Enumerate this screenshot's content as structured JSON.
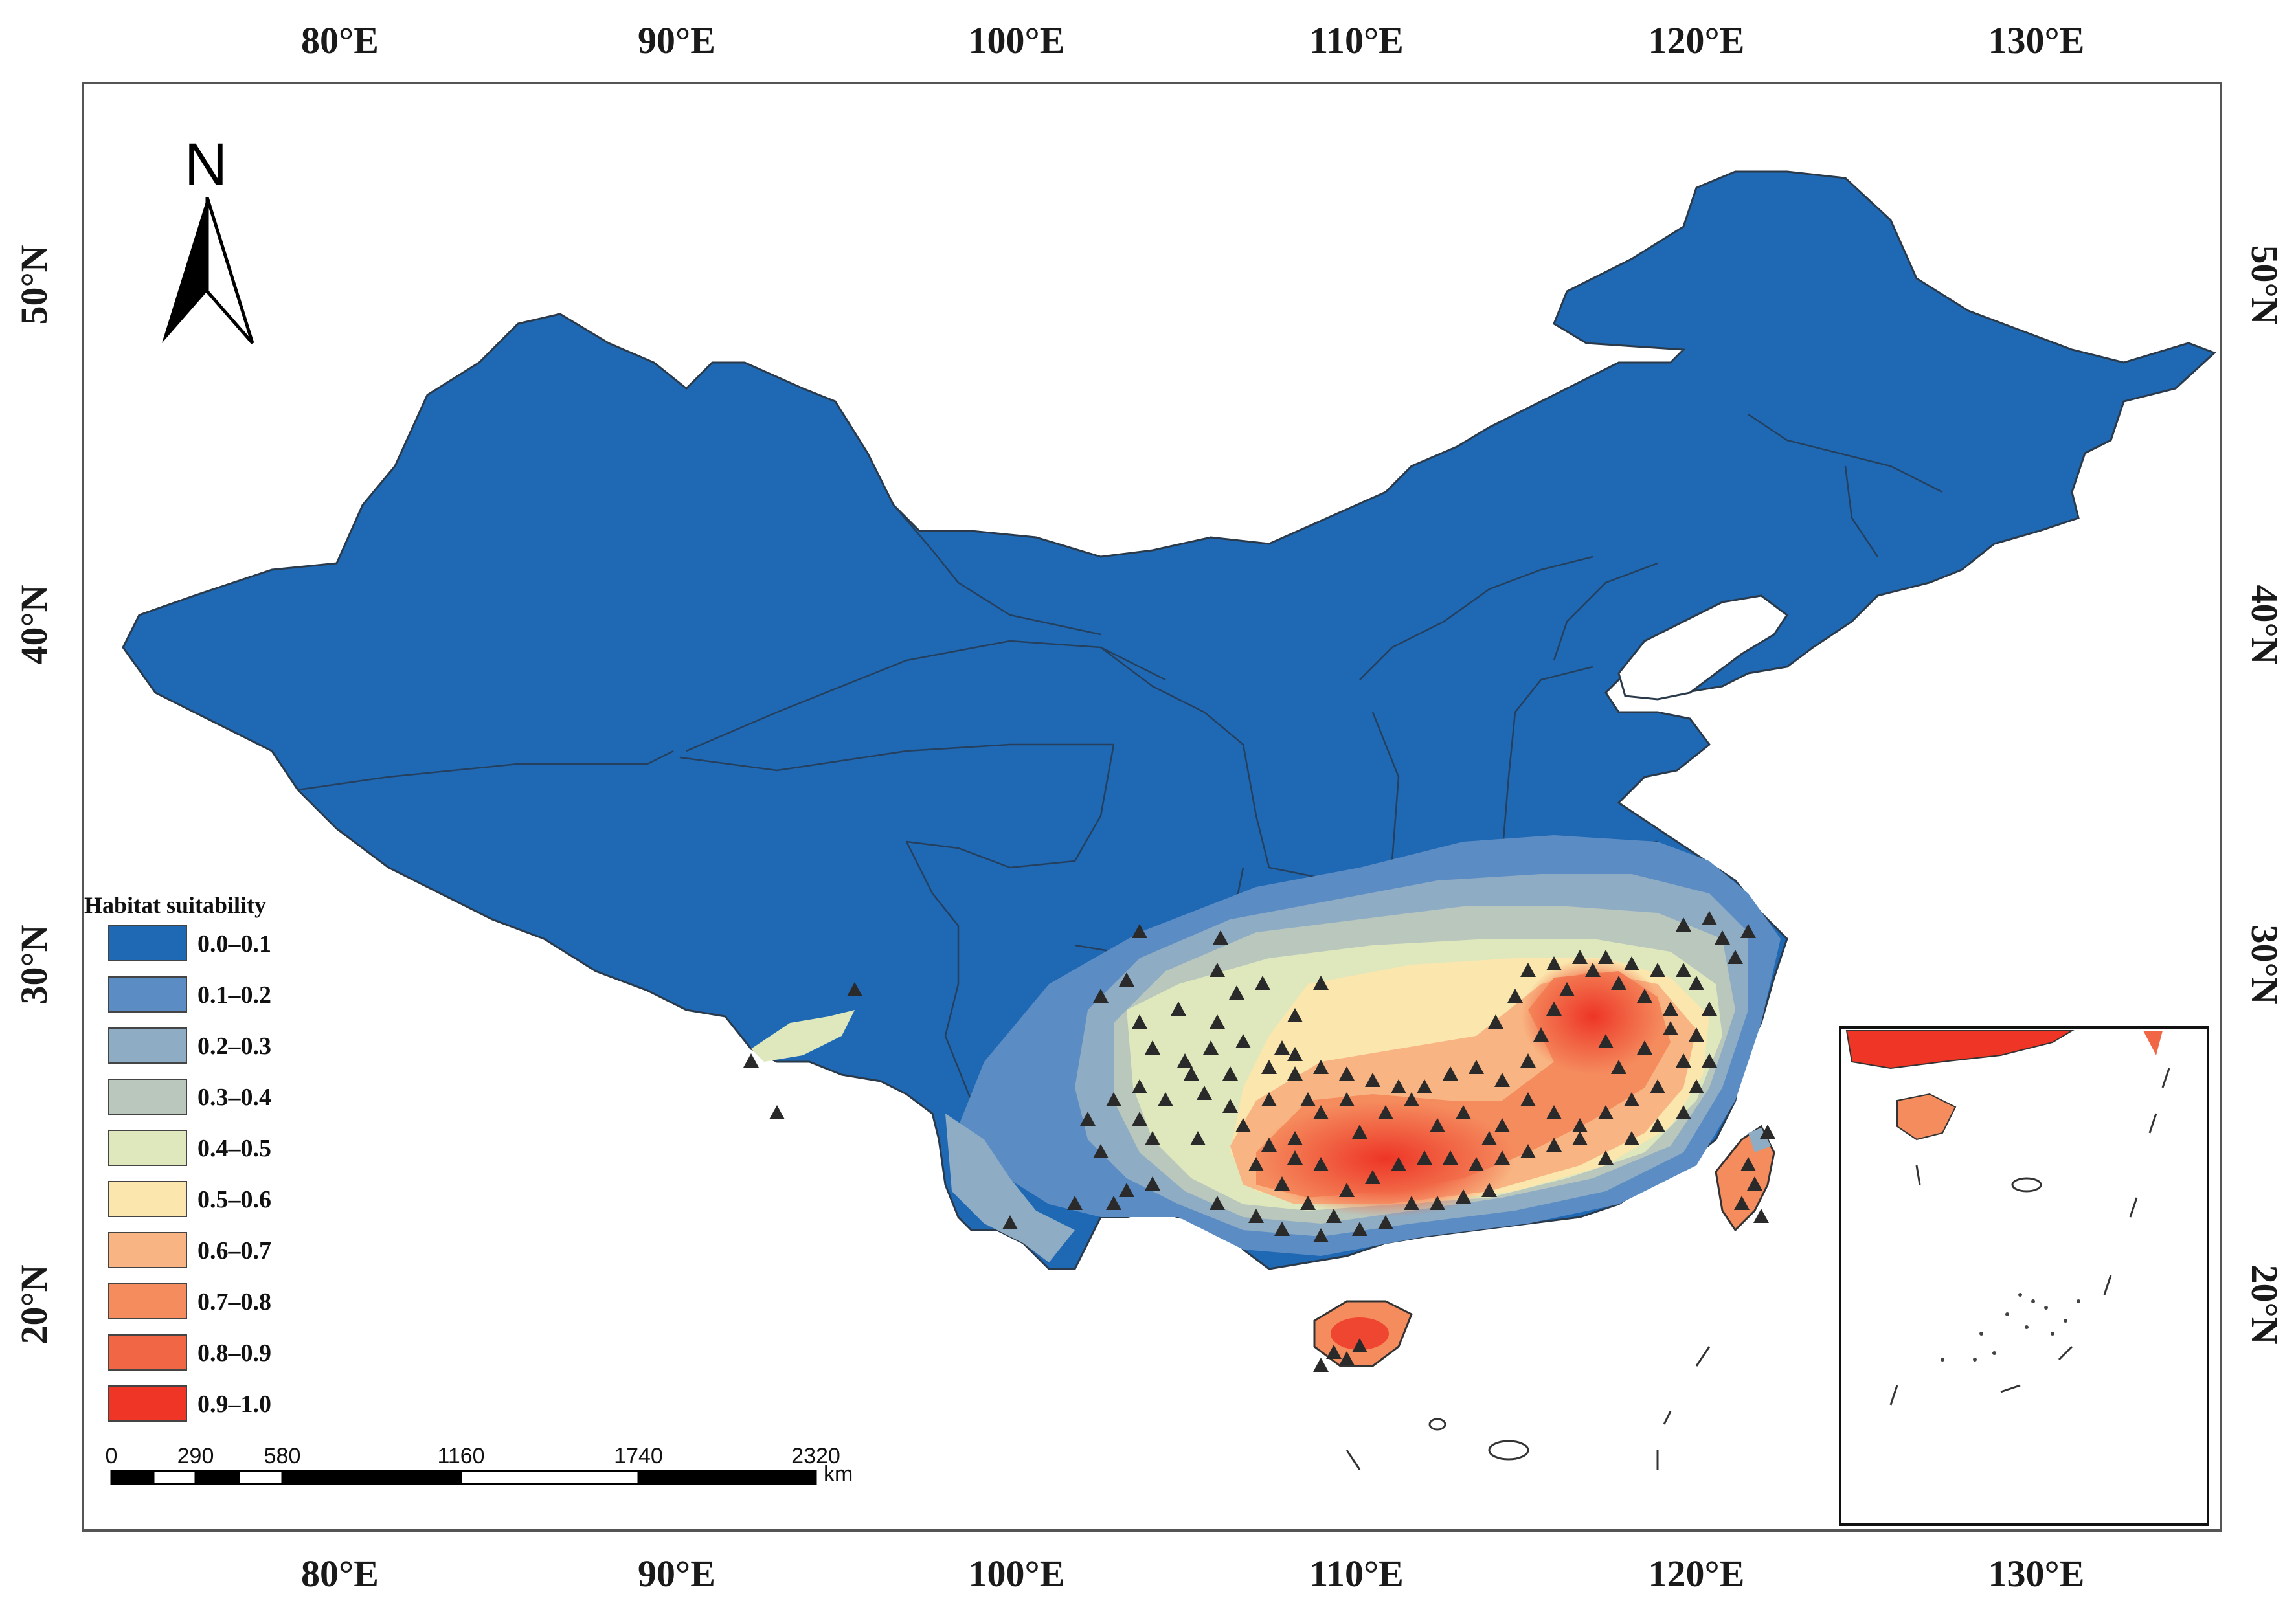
{
  "map": {
    "x_ticks": [
      "80°E",
      "90°E",
      "100°E",
      "110°E",
      "120°E",
      "130°E"
    ],
    "y_ticks": [
      "50°N",
      "40°N",
      "30°N",
      "20°N"
    ],
    "north_arrow_label": "N"
  },
  "legend": {
    "title": "Habitat suitability",
    "classes": [
      {
        "label": "0.0–0.1",
        "color": "#1f68b3"
      },
      {
        "label": "0.1–0.2",
        "color": "#5b8cc4"
      },
      {
        "label": "0.2–0.3",
        "color": "#8eacc4"
      },
      {
        "label": "0.3–0.4",
        "color": "#b9c7bd"
      },
      {
        "label": "0.4–0.5",
        "color": "#dfe8bd"
      },
      {
        "label": "0.5–0.6",
        "color": "#fbe6ad"
      },
      {
        "label": "0.6–0.7",
        "color": "#f8b482"
      },
      {
        "label": "0.7–0.8",
        "color": "#f58c5e"
      },
      {
        "label": "0.8–0.9",
        "color": "#f16645"
      },
      {
        "label": "0.9–1.0",
        "color": "#ee3526"
      }
    ]
  },
  "scale_bar": {
    "labels": [
      "0",
      "290",
      "580",
      "1160",
      "1740",
      "2320"
    ],
    "unit": "km"
  }
}
